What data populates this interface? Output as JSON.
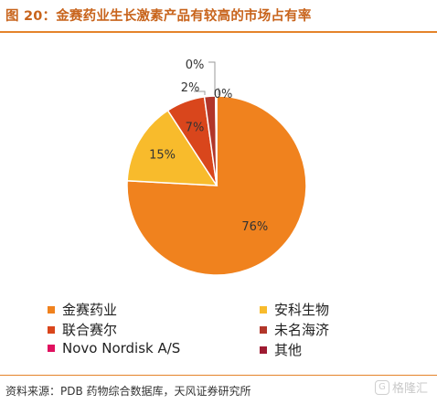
{
  "header": {
    "title": "图 20：金赛药业生长激素产品有较高的市场占有率"
  },
  "footer": {
    "source": "资料来源：PDB 药物综合数据库，天风证券研究所",
    "watermark": "格隆汇"
  },
  "chart_data": {
    "type": "pie",
    "title": "",
    "legend_position": "bottom",
    "slices": [
      {
        "name": "金赛药业",
        "value": 76,
        "label": "76%",
        "color": "#f0821e"
      },
      {
        "name": "安科生物",
        "value": 15,
        "label": "15%",
        "color": "#f8bb2c"
      },
      {
        "name": "联合赛尔",
        "value": 7,
        "label": "7%",
        "color": "#d9461c"
      },
      {
        "name": "未名海济",
        "value": 2,
        "label": "2%",
        "color": "#b2362a"
      },
      {
        "name": "Novo Nordisk A/S",
        "value": 0.1,
        "label": "0%",
        "color": "#e0115f"
      },
      {
        "name": "其他",
        "value": 0.1,
        "label": "0%",
        "color": "#9e1b32"
      }
    ]
  }
}
